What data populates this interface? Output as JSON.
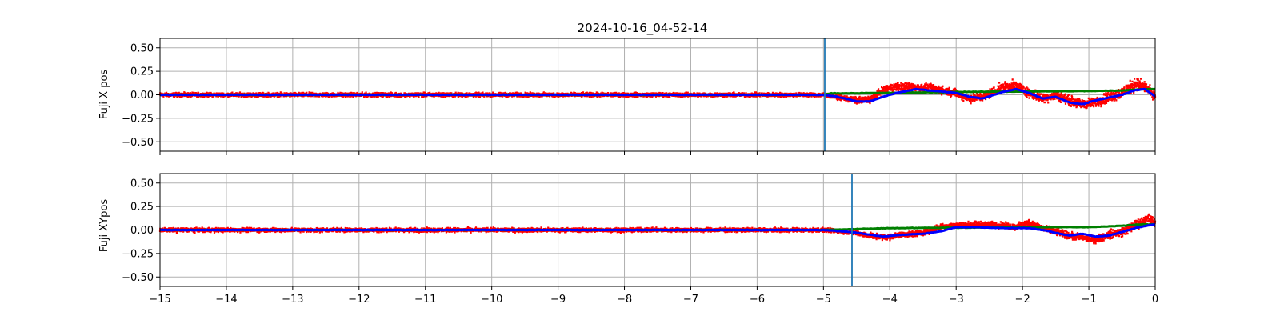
{
  "chart_data": [
    {
      "type": "scatter",
      "title": "2024-10-16_04-52-14",
      "ylabel": "Fuji X pos",
      "xlabel": "",
      "xlim": [
        -15,
        0
      ],
      "ylim": [
        -0.6,
        0.6
      ],
      "grid": true,
      "xticks": [
        -15,
        -14,
        -13,
        -12,
        -11,
        -10,
        -9,
        -8,
        -7,
        -6,
        -5,
        -4,
        -3,
        -2,
        -1,
        0
      ],
      "yticks": [
        0.5,
        0.25,
        0.0,
        -0.25,
        -0.5
      ],
      "ytick_labels": [
        "0.50",
        "0.25",
        "0.00",
        "−0.25",
        "−0.50"
      ],
      "xtick_labels_visible": false,
      "vline": -4.98,
      "series": [
        {
          "color": "#ff0000",
          "style": "dense-scatter",
          "profile": [
            [
              -15,
              0.0
            ],
            [
              -5.0,
              0.0
            ],
            [
              -4.8,
              -0.02
            ],
            [
              -4.5,
              -0.06
            ],
            [
              -4.3,
              -0.05
            ],
            [
              -4.1,
              0.05
            ],
            [
              -3.9,
              0.09
            ],
            [
              -3.6,
              0.08
            ],
            [
              -3.3,
              0.06
            ],
            [
              -3.0,
              0.02
            ],
            [
              -2.8,
              -0.04
            ],
            [
              -2.6,
              -0.02
            ],
            [
              -2.3,
              0.08
            ],
            [
              -2.1,
              0.1
            ],
            [
              -1.9,
              0.02
            ],
            [
              -1.7,
              -0.04
            ],
            [
              -1.5,
              0.0
            ],
            [
              -1.3,
              -0.06
            ],
            [
              -1.1,
              -0.1
            ],
            [
              -0.9,
              -0.08
            ],
            [
              -0.7,
              -0.02
            ],
            [
              -0.5,
              0.02
            ],
            [
              -0.3,
              0.12
            ],
            [
              -0.15,
              0.08
            ],
            [
              0,
              -0.02
            ]
          ],
          "spread": [
            [
              -15,
              0.025
            ],
            [
              -5.0,
              0.025
            ],
            [
              -4.5,
              0.04
            ],
            [
              -4.0,
              0.05
            ],
            [
              -3.0,
              0.05
            ],
            [
              -2.0,
              0.06
            ],
            [
              -1.0,
              0.06
            ],
            [
              -0.3,
              0.08
            ],
            [
              0,
              0.06
            ]
          ]
        },
        {
          "color": "#008000",
          "style": "line-dots",
          "profile": [
            [
              -15,
              0.0
            ],
            [
              -5.0,
              0.0
            ],
            [
              -4.9,
              0.015
            ],
            [
              -4.0,
              0.02
            ],
            [
              -3.0,
              0.03
            ],
            [
              -2.0,
              0.035
            ],
            [
              -1.0,
              0.04
            ],
            [
              -0.5,
              0.045
            ],
            [
              -0.2,
              0.06
            ],
            [
              0,
              0.06
            ]
          ]
        },
        {
          "color": "#0000ff",
          "style": "line-dots",
          "profile": [
            [
              -15,
              0.0
            ],
            [
              -5.0,
              0.0
            ],
            [
              -4.8,
              -0.02
            ],
            [
              -4.5,
              -0.07
            ],
            [
              -4.3,
              -0.07
            ],
            [
              -4.1,
              -0.02
            ],
            [
              -3.9,
              0.02
            ],
            [
              -3.6,
              0.06
            ],
            [
              -3.3,
              0.04
            ],
            [
              -3.0,
              0.02
            ],
            [
              -2.8,
              -0.02
            ],
            [
              -2.6,
              -0.04
            ],
            [
              -2.3,
              0.03
            ],
            [
              -2.1,
              0.06
            ],
            [
              -1.9,
              0.02
            ],
            [
              -1.7,
              -0.04
            ],
            [
              -1.5,
              -0.02
            ],
            [
              -1.3,
              -0.08
            ],
            [
              -1.1,
              -0.1
            ],
            [
              -0.9,
              -0.06
            ],
            [
              -0.7,
              -0.03
            ],
            [
              -0.5,
              0.0
            ],
            [
              -0.3,
              0.05
            ],
            [
              -0.15,
              0.06
            ],
            [
              0,
              -0.02
            ]
          ]
        }
      ]
    },
    {
      "type": "scatter",
      "title": "",
      "ylabel": "Fuji XYpos",
      "xlabel": "",
      "xlim": [
        -15,
        0
      ],
      "ylim": [
        -0.6,
        0.6
      ],
      "grid": true,
      "xticks": [
        -15,
        -14,
        -13,
        -12,
        -11,
        -10,
        -9,
        -8,
        -7,
        -6,
        -5,
        -4,
        -3,
        -2,
        -1,
        0
      ],
      "xtick_labels": [
        "−15",
        "−14",
        "−13",
        "−12",
        "−11",
        "−10",
        "−9",
        "−8",
        "−7",
        "−6",
        "−5",
        "−4",
        "−3",
        "−2",
        "−1",
        "0"
      ],
      "yticks": [
        0.5,
        0.25,
        0.0,
        -0.25,
        -0.5
      ],
      "ytick_labels": [
        "0.50",
        "0.25",
        "0.00",
        "−0.25",
        "−0.50"
      ],
      "xtick_labels_visible": true,
      "vline": -4.57,
      "series": [
        {
          "color": "#ff0000",
          "style": "dense-scatter",
          "profile": [
            [
              -15,
              0.0
            ],
            [
              -5.0,
              0.0
            ],
            [
              -4.6,
              -0.02
            ],
            [
              -4.3,
              -0.06
            ],
            [
              -4.1,
              -0.08
            ],
            [
              -3.8,
              -0.05
            ],
            [
              -3.5,
              -0.03
            ],
            [
              -3.2,
              0.04
            ],
            [
              -3.0,
              0.05
            ],
            [
              -2.7,
              0.06
            ],
            [
              -2.3,
              0.05
            ],
            [
              -2.1,
              0.03
            ],
            [
              -1.9,
              0.08
            ],
            [
              -1.7,
              0.02
            ],
            [
              -1.5,
              -0.02
            ],
            [
              -1.3,
              -0.06
            ],
            [
              -1.1,
              -0.08
            ],
            [
              -0.9,
              -0.1
            ],
            [
              -0.7,
              -0.05
            ],
            [
              -0.5,
              -0.02
            ],
            [
              -0.3,
              0.05
            ],
            [
              -0.1,
              0.12
            ],
            [
              0,
              0.08
            ]
          ],
          "spread": [
            [
              -15,
              0.025
            ],
            [
              -5.0,
              0.025
            ],
            [
              -4.0,
              0.035
            ],
            [
              -3.0,
              0.035
            ],
            [
              -2.0,
              0.04
            ],
            [
              -1.0,
              0.045
            ],
            [
              -0.3,
              0.06
            ],
            [
              0,
              0.06
            ]
          ]
        },
        {
          "color": "#008000",
          "style": "line-dots",
          "profile": [
            [
              -15,
              0.0
            ],
            [
              -5.0,
              0.0
            ],
            [
              -4.5,
              0.01
            ],
            [
              -4.0,
              0.02
            ],
            [
              -3.0,
              0.025
            ],
            [
              -2.0,
              0.03
            ],
            [
              -1.0,
              0.03
            ],
            [
              -0.5,
              0.045
            ],
            [
              -0.2,
              0.06
            ],
            [
              0,
              0.06
            ]
          ]
        },
        {
          "color": "#0000ff",
          "style": "line-dots",
          "profile": [
            [
              -15,
              0.0
            ],
            [
              -5.0,
              0.0
            ],
            [
              -4.6,
              -0.02
            ],
            [
              -4.3,
              -0.05
            ],
            [
              -4.1,
              -0.07
            ],
            [
              -3.8,
              -0.05
            ],
            [
              -3.5,
              -0.04
            ],
            [
              -3.2,
              -0.01
            ],
            [
              -3.0,
              0.03
            ],
            [
              -2.7,
              0.03
            ],
            [
              -2.3,
              0.02
            ],
            [
              -2.1,
              0.02
            ],
            [
              -1.9,
              0.02
            ],
            [
              -1.7,
              0.0
            ],
            [
              -1.5,
              -0.03
            ],
            [
              -1.3,
              -0.06
            ],
            [
              -1.1,
              -0.04
            ],
            [
              -0.9,
              -0.07
            ],
            [
              -0.7,
              -0.06
            ],
            [
              -0.5,
              -0.02
            ],
            [
              -0.3,
              0.02
            ],
            [
              -0.1,
              0.05
            ],
            [
              0,
              0.06
            ]
          ]
        }
      ]
    }
  ],
  "colors": {
    "grid": "#b0b0b0",
    "vline": "#1f77b4",
    "spine": "#000000"
  }
}
